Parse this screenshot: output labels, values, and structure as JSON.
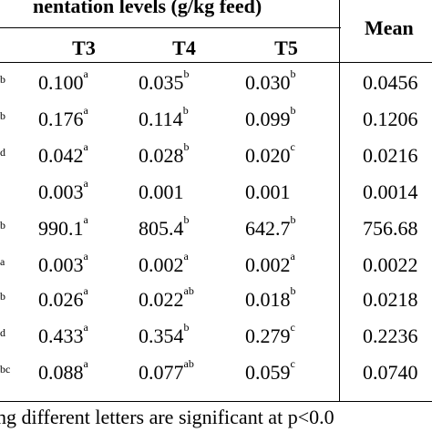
{
  "header": {
    "title": "nentation levels (g/kg feed)",
    "mean": "Mean",
    "columns": [
      "T3",
      "T4",
      "T5"
    ]
  },
  "rows": [
    {
      "edge": "b",
      "t3": "0.100",
      "t3s": "a",
      "t4": "0.035",
      "t4s": "b",
      "t5": "0.030",
      "t5s": "b",
      "mean": "0.0456"
    },
    {
      "edge": "b",
      "t3": "0.176",
      "t3s": "a",
      "t4": "0.114",
      "t4s": "b",
      "t5": "0.099",
      "t5s": "b",
      "mean": "0.1206"
    },
    {
      "edge": "d",
      "t3": "0.042",
      "t3s": "a",
      "t4": "0.028",
      "t4s": "b",
      "t5": "0.020",
      "t5s": "c",
      "mean": "0.0216"
    },
    {
      "edge": "",
      "t3": "0.003",
      "t3s": "a",
      "t4": "0.001",
      "t4s": "",
      "t5": "0.001",
      "t5s": "",
      "mean": "0.0014"
    },
    {
      "edge": "b",
      "t3": "990.1",
      "t3s": "a",
      "t4": "805.4",
      "t4s": "b",
      "t5": "642.7",
      "t5s": "b",
      "mean": "756.68"
    },
    {
      "edge": "a",
      "t3": "0.003",
      "t3s": "a",
      "t4": "0.002",
      "t4s": "a",
      "t5": "0.002",
      "t5s": "a",
      "mean": "0.0022"
    },
    {
      "edge": "b",
      "t3": "0.026",
      "t3s": "a",
      "t4": "0.022",
      "t4s": "ab",
      "t5": "0.018",
      "t5s": "b",
      "mean": "0.0218"
    },
    {
      "edge": "d",
      "t3": "0.433",
      "t3s": "a",
      "t4": "0.354",
      "t4s": "b",
      "t5": "0.279",
      "t5s": "c",
      "mean": "0.2236"
    },
    {
      "edge": "bc",
      "t3": "0.088",
      "t3s": "a",
      "t4": "0.077",
      "t4s": "ab",
      "t5": "0.059",
      "t5s": "c",
      "mean": "0.0740"
    }
  ],
  "footnote": "ng different letters are significant at p<0.0"
}
